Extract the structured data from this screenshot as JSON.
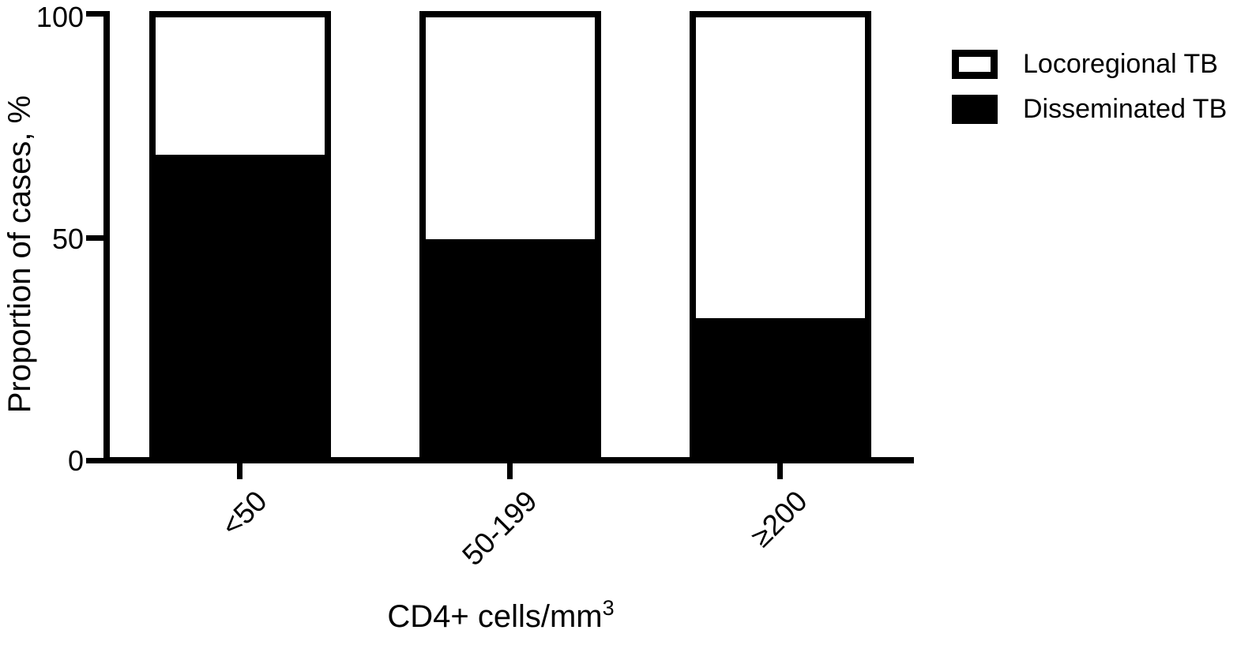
{
  "figure": {
    "background_color": "#ffffff",
    "ink_color": "#000000"
  },
  "chart_data": {
    "type": "bar",
    "subtype": "stacked-100-percent",
    "title": "",
    "xlabel": "CD4+ cells/mm",
    "xlabel_superscript": "3",
    "ylabel": "Proportion of cases, %",
    "categories": [
      "<50",
      "50-199",
      "≥200"
    ],
    "series": [
      {
        "name": "Disseminated TB",
        "color": "#000000",
        "values": [
          69,
          50,
          32
        ]
      },
      {
        "name": "Locoregional TB",
        "color": "#ffffff",
        "values": [
          31,
          50,
          68
        ]
      }
    ],
    "ylim": [
      0,
      100
    ],
    "yticks": [
      0,
      50,
      100
    ],
    "grid": false,
    "legend": {
      "position": "top-right",
      "entries": [
        {
          "label": "Locoregional TB",
          "swatch": "white-outlined"
        },
        {
          "label": "Disseminated TB",
          "swatch": "black-filled"
        }
      ]
    }
  }
}
